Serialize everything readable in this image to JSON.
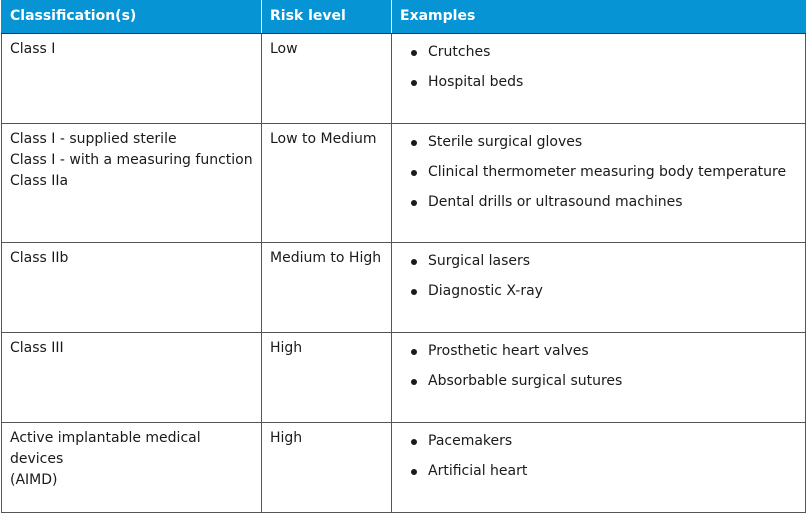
{
  "header": {
    "classification": "Classification(s)",
    "risk": "Risk level",
    "examples": "Examples"
  },
  "colors": {
    "header_bg": "#0694d5",
    "header_text": "#ffffff",
    "border": "#555555"
  },
  "rows": [
    {
      "classification": [
        "Class I"
      ],
      "risk": "Low",
      "examples": [
        "Crutches",
        "Hospital beds"
      ]
    },
    {
      "classification": [
        "Class I - supplied sterile",
        "Class I - with a measuring function",
        "Class IIa"
      ],
      "risk": "Low to Medium",
      "examples": [
        "Sterile surgical gloves",
        "Clinical thermometer measuring body temperature",
        "Dental drills or ultrasound machines"
      ]
    },
    {
      "classification": [
        "Class IIb"
      ],
      "risk": "Medium to High",
      "examples": [
        "Surgical lasers",
        "Diagnostic X-ray"
      ]
    },
    {
      "classification": [
        "Class III"
      ],
      "risk": "High",
      "examples": [
        "Prosthetic heart valves",
        "Absorbable surgical sutures"
      ]
    },
    {
      "classification": [
        "Active implantable medical devices",
        "(AIMD)"
      ],
      "risk": "High",
      "examples": [
        "Pacemakers",
        "Artificial heart"
      ]
    }
  ]
}
